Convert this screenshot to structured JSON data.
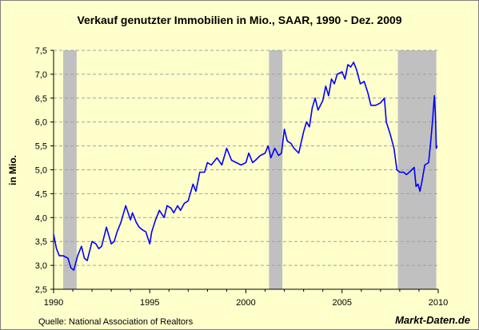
{
  "chart_data": {
    "type": "line",
    "title": "Verkauf genutzter Immobilien in Mio., SAAR, 1990 - Dez. 2009",
    "xlabel": "",
    "ylabel": "in Mio.",
    "xlim": [
      1990,
      2010
    ],
    "ylim": [
      2.5,
      7.5
    ],
    "x_ticks": [
      "1990",
      "1995",
      "2000",
      "2005",
      "2010"
    ],
    "y_ticks": [
      "2,5",
      "3,0",
      "3,5",
      "4,0",
      "4,5",
      "5,0",
      "5,5",
      "6,0",
      "6,5",
      "7,0",
      "7,5"
    ],
    "grid": true,
    "line_color": "#0000ff",
    "recession_color": "#c0c0c0",
    "recessions": [
      {
        "start": 1990.5,
        "end": 1991.2
      },
      {
        "start": 2001.2,
        "end": 2001.9
      },
      {
        "start": 2007.9,
        "end": 2009.9
      }
    ],
    "series": [
      {
        "x": [
          1990.0,
          1990.15,
          1990.3,
          1990.5,
          1990.75,
          1990.9,
          1991.05,
          1991.25,
          1991.45,
          1991.6,
          1991.75,
          1992.0,
          1992.2,
          1992.35,
          1992.5,
          1992.75,
          1993.0,
          1993.15,
          1993.3,
          1993.5,
          1993.75,
          1994.0,
          1994.1,
          1994.3,
          1994.45,
          1994.6,
          1994.8,
          1995.0,
          1995.1,
          1995.3,
          1995.5,
          1995.75,
          1995.9,
          1996.1,
          1996.25,
          1996.45,
          1996.6,
          1996.8,
          1997.0,
          1997.25,
          1997.4,
          1997.6,
          1997.85,
          1998.0,
          1998.2,
          1998.5,
          1998.75,
          1999.0,
          1999.25,
          1999.5,
          1999.75,
          2000.0,
          2000.15,
          2000.35,
          2000.5,
          2000.75,
          2001.0,
          2001.15,
          2001.3,
          2001.5,
          2001.7,
          2001.85,
          2002.0,
          2002.15,
          2002.35,
          2002.5,
          2002.75,
          2003.0,
          2003.15,
          2003.3,
          2003.45,
          2003.6,
          2003.75,
          2004.0,
          2004.15,
          2004.3,
          2004.45,
          2004.6,
          2004.75,
          2005.0,
          2005.15,
          2005.3,
          2005.45,
          2005.6,
          2005.75,
          2005.95,
          2006.15,
          2006.35,
          2006.5,
          2006.75,
          2007.0,
          2007.2,
          2007.3,
          2007.5,
          2007.7,
          2007.85,
          2008.0,
          2008.2,
          2008.35,
          2008.5,
          2008.75,
          2008.85,
          2008.95,
          2009.05,
          2009.15,
          2009.3,
          2009.5,
          2009.6,
          2009.7,
          2009.8,
          2009.85,
          2009.9,
          2009.95
        ],
        "values": [
          3.65,
          3.35,
          3.2,
          3.2,
          3.15,
          2.95,
          2.9,
          3.2,
          3.4,
          3.15,
          3.1,
          3.5,
          3.45,
          3.35,
          3.4,
          3.8,
          3.45,
          3.5,
          3.7,
          3.9,
          4.25,
          3.95,
          4.1,
          3.9,
          3.8,
          3.75,
          3.7,
          3.45,
          3.7,
          3.95,
          4.15,
          4.0,
          4.25,
          4.2,
          4.1,
          4.25,
          4.15,
          4.3,
          4.35,
          4.7,
          4.55,
          4.95,
          4.95,
          5.15,
          5.1,
          5.25,
          5.1,
          5.45,
          5.2,
          5.15,
          5.1,
          5.15,
          5.35,
          5.15,
          5.2,
          5.3,
          5.35,
          5.5,
          5.25,
          5.45,
          5.3,
          5.35,
          5.85,
          5.6,
          5.55,
          5.45,
          5.35,
          5.8,
          6.0,
          5.9,
          6.3,
          6.5,
          6.25,
          6.45,
          6.75,
          6.55,
          6.9,
          6.8,
          7.0,
          7.05,
          6.9,
          7.2,
          7.15,
          7.25,
          7.1,
          6.8,
          6.85,
          6.6,
          6.35,
          6.35,
          6.4,
          6.5,
          6.0,
          5.75,
          5.45,
          5.0,
          4.95,
          4.95,
          4.9,
          4.95,
          5.05,
          4.65,
          4.7,
          4.55,
          4.75,
          5.1,
          5.15,
          5.55,
          6.0,
          6.55,
          6.2,
          5.45,
          5.5
        ]
      }
    ]
  },
  "footer": {
    "source": "Quelle: National Association of Realtors",
    "brand": "Markt-Daten.de"
  }
}
